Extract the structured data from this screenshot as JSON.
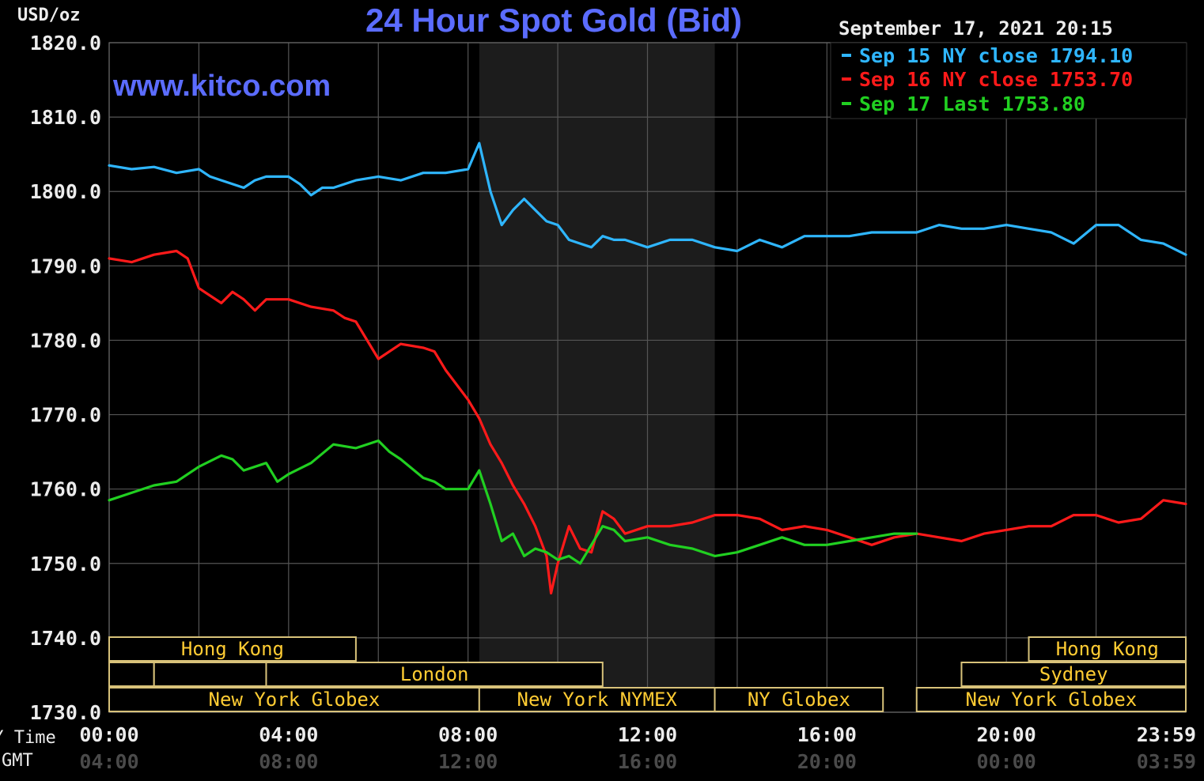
{
  "chart_data": {
    "type": "line",
    "title": "24 Hour Spot Gold (Bid)",
    "ylabel": "USD/oz",
    "website": "www.kitco.com",
    "timestamp": "September 17, 2021 20:15",
    "ylim": [
      1730,
      1820
    ],
    "yticks": [
      "1820.0",
      "1810.0",
      "1800.0",
      "1790.0",
      "1780.0",
      "1770.0",
      "1760.0",
      "1750.0",
      "1740.0",
      "1730.0"
    ],
    "xlim": [
      0,
      24
    ],
    "xticks_ny": [
      "00:00",
      "04:00",
      "08:00",
      "12:00",
      "16:00",
      "20:00",
      "23:59"
    ],
    "xticks_gmt": [
      "04:00",
      "08:00",
      "12:00",
      "16:00",
      "20:00",
      "00:00",
      "03:59"
    ],
    "xaxis_ny_label": "NY Time",
    "xaxis_gmt_label": "GMT",
    "grid": true,
    "legend_position": "top-right",
    "series": [
      {
        "name": "Sep 15 NY close",
        "legend_label": "Sep 15 NY close 1794.10",
        "color": "#2fb6ff",
        "x": [
          0,
          0.5,
          1,
          1.5,
          2,
          2.25,
          2.5,
          3,
          3.25,
          3.5,
          4,
          4.25,
          4.5,
          4.75,
          5,
          5.5,
          6,
          6.5,
          7,
          7.5,
          8,
          8.25,
          8.5,
          8.75,
          9,
          9.25,
          9.5,
          9.75,
          10,
          10.25,
          10.5,
          10.75,
          11,
          11.25,
          11.5,
          12,
          12.5,
          12.75,
          13,
          13.5,
          14,
          14.5,
          15,
          15.5,
          16,
          16.5,
          17,
          17.5,
          18,
          18.5,
          19,
          19.5,
          20,
          20.5,
          21,
          21.5,
          22,
          22.5,
          23,
          23.5,
          24
        ],
        "y": [
          1803.5,
          1803.0,
          1803.3,
          1802.5,
          1803.0,
          1802.0,
          1801.5,
          1800.5,
          1801.5,
          1802.0,
          1802.0,
          1801.0,
          1799.5,
          1800.5,
          1800.5,
          1801.5,
          1802.0,
          1801.5,
          1802.5,
          1802.5,
          1803.0,
          1806.5,
          1800.0,
          1795.5,
          1797.5,
          1799.0,
          1797.5,
          1796.0,
          1795.5,
          1793.5,
          1793.0,
          1792.5,
          1794.0,
          1793.5,
          1793.5,
          1792.5,
          1793.5,
          1793.5,
          1793.5,
          1792.5,
          1792.0,
          1793.5,
          1792.5,
          1794.0,
          1794.0,
          1794.0,
          1794.5,
          1794.5,
          1794.5,
          1795.5,
          1795.0,
          1795.0,
          1795.5,
          1795.0,
          1794.5,
          1793.0,
          1795.5,
          1795.5,
          1793.5,
          1793.0,
          1791.5
        ]
      },
      {
        "name": "Sep 16 NY close",
        "legend_label": "Sep 16 NY close 1753.70",
        "color": "#ff1a1a",
        "x": [
          0,
          0.5,
          1,
          1.5,
          1.75,
          2,
          2.5,
          2.75,
          3,
          3.25,
          3.5,
          4,
          4.5,
          5,
          5.25,
          5.5,
          6,
          6.25,
          6.5,
          7,
          7.25,
          7.5,
          8,
          8.25,
          8.5,
          8.75,
          9,
          9.25,
          9.5,
          9.75,
          9.85,
          10,
          10.25,
          10.5,
          10.75,
          11,
          11.25,
          11.5,
          12,
          12.5,
          13,
          13.5,
          14,
          14.5,
          15,
          15.5,
          16,
          16.5,
          17,
          17.5,
          18,
          18.5,
          19,
          19.5,
          20,
          20.5,
          21,
          21.5,
          22,
          22.5,
          23,
          23.5,
          24
        ],
        "y": [
          1791.0,
          1790.5,
          1791.5,
          1792.0,
          1791.0,
          1787.0,
          1785.0,
          1786.5,
          1785.5,
          1784.0,
          1785.5,
          1785.5,
          1784.5,
          1784.0,
          1783.0,
          1782.5,
          1777.5,
          1778.5,
          1779.5,
          1779.0,
          1778.5,
          1776.0,
          1772.0,
          1769.5,
          1766.0,
          1763.5,
          1760.5,
          1758.0,
          1755.0,
          1751.0,
          1746.0,
          1750.0,
          1755.0,
          1752.0,
          1751.5,
          1757.0,
          1756.0,
          1754.0,
          1755.0,
          1755.0,
          1755.5,
          1756.5,
          1756.5,
          1756.0,
          1754.5,
          1755.0,
          1754.5,
          1753.5,
          1752.5,
          1753.5,
          1754.0,
          1753.5,
          1753.0,
          1754.0,
          1754.5,
          1755.0,
          1755.0,
          1756.5,
          1756.5,
          1755.5,
          1756.0,
          1758.5,
          1758.0
        ]
      },
      {
        "name": "Sep 17 Last",
        "legend_label": "Sep 17 Last 1753.80",
        "color": "#21d021",
        "x": [
          0,
          0.5,
          1,
          1.5,
          2,
          2.5,
          2.75,
          3,
          3.5,
          3.75,
          4,
          4.5,
          5,
          5.5,
          6,
          6.25,
          6.5,
          7,
          7.25,
          7.5,
          8,
          8.25,
          8.5,
          8.75,
          9,
          9.25,
          9.5,
          9.75,
          10,
          10.25,
          10.5,
          10.75,
          11,
          11.25,
          11.5,
          12,
          12.5,
          13,
          13.5,
          14,
          14.5,
          15,
          15.5,
          16,
          16.5,
          17,
          17.5,
          18
        ],
        "y": [
          1758.5,
          1759.5,
          1760.5,
          1761.0,
          1763.0,
          1764.5,
          1764.0,
          1762.5,
          1763.5,
          1761.0,
          1762.0,
          1763.5,
          1766.0,
          1765.5,
          1766.5,
          1765.0,
          1764.0,
          1761.5,
          1761.0,
          1760.0,
          1760.0,
          1762.5,
          1758.0,
          1753.0,
          1754.0,
          1751.0,
          1752.0,
          1751.5,
          1750.5,
          1751.0,
          1750.0,
          1752.5,
          1755.0,
          1754.5,
          1753.0,
          1753.5,
          1752.5,
          1752.0,
          1751.0,
          1751.5,
          1752.5,
          1753.5,
          1752.5,
          1752.5,
          1753.0,
          1753.5,
          1754.0,
          1754.0
        ]
      }
    ],
    "sessions": [
      {
        "label": "Hong Kong",
        "row": 0,
        "start": 0,
        "end": 5.5
      },
      {
        "label": "",
        "row": 1,
        "start": 0,
        "end": 1
      },
      {
        "label": "",
        "row": 1,
        "start": 1,
        "end": 3.5
      },
      {
        "label": "London",
        "row": 1,
        "start": 3.5,
        "end": 11
      },
      {
        "label": "New York Globex",
        "row": 2,
        "start": 0,
        "end": 8.25
      },
      {
        "label": "New York NYMEX",
        "row": 2,
        "start": 8.25,
        "end": 13.5
      },
      {
        "label": "NY Globex",
        "row": 2,
        "start": 13.5,
        "end": 17.25
      },
      {
        "label": "Hong Kong",
        "row": 0,
        "start": 20.5,
        "end": 24
      },
      {
        "label": "Sydney",
        "row": 1,
        "start": 19,
        "end": 24
      },
      {
        "label": "New York Globex",
        "row": 2,
        "start": 18,
        "end": 24
      }
    ],
    "shaded_region": [
      8.25,
      13.5
    ]
  }
}
